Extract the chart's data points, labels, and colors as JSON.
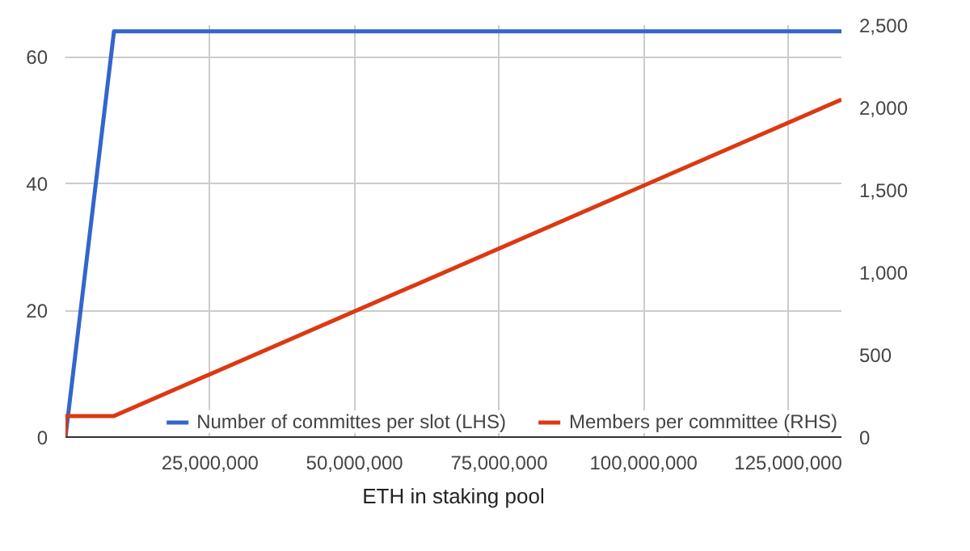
{
  "chart_data": {
    "type": "line",
    "xlabel": "ETH in staking pool",
    "xlim": [
      0,
      134217728
    ],
    "xticks": [
      {
        "value": 25000000,
        "label": "25,000,000"
      },
      {
        "value": 50000000,
        "label": "50,000,000"
      },
      {
        "value": 75000000,
        "label": "75,000,000"
      },
      {
        "value": 100000000,
        "label": "100,000,000"
      },
      {
        "value": 125000000,
        "label": "125,000,000"
      }
    ],
    "ylim": [
      0,
      65
    ],
    "yticks": [
      0,
      20,
      40,
      60
    ],
    "y2lim": [
      0,
      2500
    ],
    "y2ticks": [
      0,
      {
        "value": 500,
        "label": "500"
      },
      {
        "value": 1000,
        "label": "1,000"
      },
      {
        "value": 1500,
        "label": "1,500"
      },
      {
        "value": 2000,
        "label": "2,000"
      },
      {
        "value": 2500,
        "label": "2,500"
      }
    ],
    "series": [
      {
        "name": "Number of committes per slot (LHS)",
        "color": "#3366cc",
        "x": [
          0,
          8388608,
          134217728
        ],
        "values": [
          0,
          64,
          64
        ]
      },
      {
        "name": "Members per committee (RHS)",
        "color": "#dc3912",
        "axis": "y2",
        "x": [
          0,
          0,
          8388608,
          134217728
        ],
        "values": [
          0,
          128,
          128,
          2048
        ]
      }
    ],
    "grid": true,
    "legend": "bottom",
    "line_style": "solid",
    "marker": "none"
  }
}
